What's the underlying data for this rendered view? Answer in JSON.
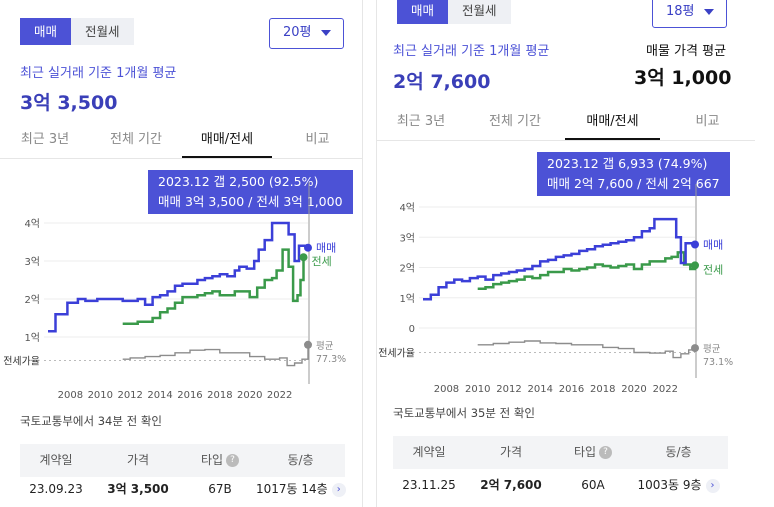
{
  "colors": {
    "accent": "#4c52d6",
    "sale": "#3b3fd8",
    "lease": "#3a9a4a",
    "ratio": "#8c8c8c"
  },
  "left": {
    "trade_tabs": [
      "매매",
      "전월세"
    ],
    "size": "20평",
    "summary_label": "최근 실거래 기준 1개월 평균",
    "summary_value": "3억 3,500",
    "tabs": [
      "최근 3년",
      "전체 기간",
      "매매/전세",
      "비교"
    ],
    "tooltip_line1": "2023.12  갭 2,500 (92.5%)",
    "tooltip_line2": "매매 3억 3,500 / 전세 3억 1,000",
    "note": "국토교통부에서 34분 전 확인",
    "table": {
      "headers": [
        "계약일",
        "가격",
        "타입",
        "동/층"
      ],
      "row": [
        "23.09.23",
        "3억 3,500",
        "67B",
        "1017동 14층"
      ]
    }
  },
  "right": {
    "trade_tabs": [
      "매매",
      "전월세"
    ],
    "size": "18평",
    "summary_label": "최근 실거래 기준 1개월 평균",
    "summary_value": "2억 7,600",
    "listing_label": "매물 가격 평균",
    "listing_value": "3억 1,000",
    "tabs": [
      "최근 3년",
      "전체 기간",
      "매매/전세",
      "비교"
    ],
    "tooltip_line1": "2023.12  갭 6,933 (74.9%)",
    "tooltip_line2": "매매 2억 7,600 / 전세 2억 667",
    "note": "국토교통부에서 35분 전 확인",
    "table": {
      "headers": [
        "계약일",
        "가격",
        "타입",
        "동/층"
      ],
      "row": [
        "23.11.25",
        "2억 7,600",
        "60A",
        "1003동 9층"
      ]
    }
  },
  "chart_data": [
    {
      "type": "line",
      "ylabel": "",
      "ylim": [
        1,
        4
      ],
      "y_ticks": [
        "1억",
        "2억",
        "3억",
        "4억"
      ],
      "x_ticks": [
        "2008",
        "2010",
        "2012",
        "2014",
        "2016",
        "2018",
        "2020",
        "2022"
      ],
      "ratio_axis_label": "전세가율",
      "legend": [
        "매매",
        "전세"
      ],
      "ratio_legend": "평균",
      "ratio_avg_label": "77.3%",
      "series": [
        {
          "name": "매매",
          "x": [
            2006.5,
            2007,
            2007.8,
            2008.5,
            2009,
            2009.8,
            2010.5,
            2011,
            2011.5,
            2012,
            2012.5,
            2013,
            2013.5,
            2014,
            2014.5,
            2015,
            2015.5,
            2016,
            2016.5,
            2017,
            2017.5,
            2018,
            2018.5,
            2019,
            2019.3,
            2019.8,
            2020.3,
            2020.6,
            2021,
            2021.5,
            2021.9,
            2022.3,
            2022.6,
            2023,
            2023.3,
            2023.9
          ],
          "values": [
            1.15,
            1.6,
            1.9,
            2.0,
            1.95,
            2.0,
            2.0,
            2.0,
            1.95,
            1.95,
            2.0,
            1.85,
            2.05,
            2.1,
            2.2,
            2.35,
            2.4,
            2.4,
            2.5,
            2.55,
            2.6,
            2.65,
            2.6,
            2.75,
            2.85,
            2.8,
            3.0,
            3.3,
            3.55,
            4.0,
            4.0,
            4.0,
            3.7,
            3.0,
            3.4,
            3.35
          ]
        },
        {
          "name": "전세",
          "x": [
            2011.5,
            2012,
            2012.5,
            2013,
            2013.5,
            2014,
            2014.5,
            2015,
            2015.5,
            2016,
            2016.5,
            2017,
            2017.5,
            2018,
            2018.5,
            2019,
            2019.5,
            2020,
            2020.5,
            2021,
            2021.5,
            2021.8,
            2022.2,
            2022.6,
            2022.9,
            2023.2,
            2023.4,
            2023.6
          ],
          "values": [
            1.35,
            1.35,
            1.4,
            1.4,
            1.5,
            1.65,
            1.75,
            1.9,
            2.05,
            2.05,
            2.1,
            2.15,
            2.2,
            2.1,
            2.1,
            2.2,
            2.2,
            2.05,
            2.3,
            2.5,
            2.55,
            2.75,
            3.3,
            2.85,
            1.95,
            2.1,
            2.5,
            3.1
          ]
        }
      ],
      "ratio_series": {
        "x": [
          2011.5,
          2012,
          2013,
          2014,
          2015,
          2016,
          2017,
          2018,
          2019,
          2020,
          2021,
          2022,
          2022.5,
          2023,
          2023.5,
          2023.9
        ],
        "values": [
          0.7,
          0.72,
          0.74,
          0.76,
          0.8,
          0.84,
          0.85,
          0.8,
          0.8,
          0.74,
          0.7,
          0.72,
          0.6,
          0.64,
          0.7,
          0.925
        ]
      }
    },
    {
      "type": "line",
      "ylabel": "",
      "ylim": [
        0,
        4
      ],
      "y_ticks": [
        "0",
        "1억",
        "2억",
        "3억",
        "4억"
      ],
      "x_ticks": [
        "2008",
        "2010",
        "2012",
        "2014",
        "2016",
        "2018",
        "2020",
        "2022"
      ],
      "ratio_axis_label": "전세가율",
      "legend": [
        "매매",
        "전세"
      ],
      "ratio_legend": "평균",
      "ratio_avg_label": "73.1%",
      "series": [
        {
          "name": "매매",
          "x": [
            2006.5,
            2007,
            2007.5,
            2008,
            2008.5,
            2009,
            2009.5,
            2010,
            2010.5,
            2011,
            2011.5,
            2012,
            2012.5,
            2013,
            2013.5,
            2014,
            2014.5,
            2015,
            2015.5,
            2016,
            2016.5,
            2017,
            2017.5,
            2018,
            2018.5,
            2019,
            2019.5,
            2020,
            2020.5,
            2021,
            2021.3,
            2021.8,
            2022.3,
            2022.7,
            2023,
            2023.3,
            2023.9
          ],
          "values": [
            0.95,
            1.1,
            1.35,
            1.5,
            1.6,
            1.55,
            1.65,
            1.7,
            1.6,
            1.75,
            1.8,
            1.85,
            1.9,
            1.95,
            2.05,
            2.2,
            2.25,
            2.35,
            2.4,
            2.45,
            2.55,
            2.6,
            2.7,
            2.75,
            2.8,
            2.85,
            2.9,
            3.0,
            3.2,
            3.3,
            3.6,
            3.6,
            3.6,
            3.0,
            2.15,
            2.8,
            2.76
          ]
        },
        {
          "name": "전세",
          "x": [
            2010,
            2010.5,
            2011,
            2011.5,
            2012,
            2012.5,
            2013,
            2013.5,
            2014,
            2014.5,
            2015,
            2015.5,
            2016,
            2016.5,
            2017,
            2017.5,
            2018,
            2018.5,
            2019,
            2019.5,
            2020,
            2020.5,
            2021,
            2021.5,
            2022,
            2022.4,
            2022.8,
            2023.2,
            2023.6,
            2023.9
          ],
          "values": [
            1.3,
            1.35,
            1.45,
            1.5,
            1.55,
            1.6,
            1.7,
            1.65,
            1.75,
            1.85,
            1.85,
            1.95,
            1.9,
            1.95,
            2.0,
            2.1,
            2.05,
            2.0,
            2.05,
            2.1,
            1.95,
            2.1,
            2.2,
            2.2,
            2.3,
            2.35,
            2.5,
            2.1,
            1.95,
            2.07
          ]
        }
      ],
      "ratio_series": {
        "x": [
          2010,
          2011,
          2012,
          2013,
          2014,
          2015,
          2016,
          2017,
          2018,
          2019,
          2020,
          2021,
          2022,
          2022.5,
          2023,
          2023.5,
          2023.9
        ],
        "values": [
          0.8,
          0.82,
          0.84,
          0.86,
          0.83,
          0.82,
          0.8,
          0.8,
          0.76,
          0.74,
          0.68,
          0.67,
          0.7,
          0.6,
          0.66,
          0.72,
          0.749
        ]
      }
    }
  ]
}
